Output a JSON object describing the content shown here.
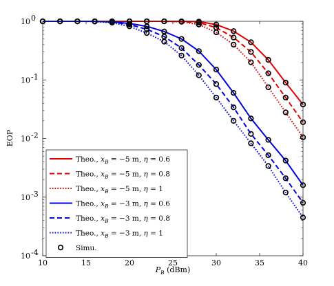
{
  "chart_data": {
    "type": "line",
    "title": "",
    "xlabel_main": "P",
    "xlabel_sub": "B",
    "xlabel_unit": " (dBm)",
    "ylabel": "EOP",
    "xlim": [
      10,
      40
    ],
    "ylim": [
      0.0001,
      1
    ],
    "yscale": "log",
    "grid": false,
    "legend_position": "bottom-left",
    "x_ticks": [
      "10",
      "15",
      "20",
      "25",
      "30",
      "35",
      "40"
    ],
    "y_ticks": [
      {
        "base": "10",
        "exp": "-4",
        "value": 0.0001
      },
      {
        "base": "10",
        "exp": "-3",
        "value": 0.001
      },
      {
        "base": "10",
        "exp": "-2",
        "value": 0.01
      },
      {
        "base": "10",
        "exp": "-1",
        "value": 0.1
      },
      {
        "base": "10",
        "exp": "0",
        "value": 1
      }
    ],
    "series": [
      {
        "name": "Theo., xB = −5 m, η = 0.6",
        "label_parts": [
          "Theo., ",
          "x",
          "B",
          " = −5 m, ",
          "η",
          " = 0.6"
        ],
        "color": "#e00000",
        "dash": "solid",
        "x": [
          10,
          12,
          14,
          16,
          18,
          20,
          22,
          24,
          26,
          28,
          30,
          32,
          34,
          36,
          38,
          40
        ],
        "y": [
          1,
          1,
          1,
          1,
          1,
          1,
          1,
          1,
          1,
          0.99,
          0.88,
          0.68,
          0.44,
          0.22,
          0.09,
          0.038
        ]
      },
      {
        "name": "Theo., xB = −5 m, η = 0.8",
        "label_parts": [
          "Theo., ",
          "x",
          "B",
          " = −5 m, ",
          "η",
          " = 0.8"
        ],
        "color": "#e00000",
        "dash": "dashed",
        "x": [
          10,
          12,
          14,
          16,
          18,
          20,
          22,
          24,
          26,
          28,
          30,
          32,
          34,
          36,
          38,
          40
        ],
        "y": [
          1,
          1,
          1,
          1,
          1,
          1,
          1,
          1,
          0.99,
          0.95,
          0.78,
          0.53,
          0.3,
          0.13,
          0.05,
          0.019
        ]
      },
      {
        "name": "Theo., xB = −5 m, η = 1",
        "label_parts": [
          "Theo., ",
          "x",
          "B",
          " = −5 m, ",
          "η",
          " = 1"
        ],
        "color": "#e00000",
        "dash": "dotted",
        "x": [
          10,
          12,
          14,
          16,
          18,
          20,
          22,
          24,
          26,
          28,
          30,
          32,
          34,
          36,
          38,
          40
        ],
        "y": [
          1,
          1,
          1,
          1,
          1,
          1,
          1,
          1,
          0.98,
          0.88,
          0.65,
          0.4,
          0.2,
          0.075,
          0.028,
          0.0105
        ]
      },
      {
        "name": "Theo., xB = −3 m, η = 0.6",
        "label_parts": [
          "Theo., ",
          "x",
          "B",
          " = −3 m, ",
          "η",
          " = 0.6"
        ],
        "color": "#0000e0",
        "dash": "solid",
        "x": [
          10,
          12,
          14,
          16,
          18,
          20,
          22,
          24,
          26,
          28,
          30,
          32,
          34,
          36,
          38,
          40
        ],
        "y": [
          1,
          1,
          1,
          1,
          0.98,
          0.92,
          0.82,
          0.67,
          0.5,
          0.31,
          0.15,
          0.06,
          0.022,
          0.0095,
          0.0042,
          0.0016
        ]
      },
      {
        "name": "Theo., xB = −3 m, η = 0.8",
        "label_parts": [
          "Theo., ",
          "x",
          "B",
          " = −3 m, ",
          "η",
          " = 0.8"
        ],
        "color": "#0000e0",
        "dash": "dashed",
        "x": [
          10,
          12,
          14,
          16,
          18,
          20,
          22,
          24,
          26,
          28,
          30,
          32,
          34,
          36,
          38,
          40
        ],
        "y": [
          1,
          1,
          1,
          1,
          0.97,
          0.88,
          0.73,
          0.55,
          0.35,
          0.18,
          0.085,
          0.034,
          0.012,
          0.0052,
          0.0021,
          0.0008
        ]
      },
      {
        "name": "Theo., xB = −3 m, η = 1",
        "label_parts": [
          "Theo., ",
          "x",
          "B",
          " = −3 m, ",
          "η",
          " = 1"
        ],
        "color": "#0000e0",
        "dash": "dotted",
        "x": [
          10,
          12,
          14,
          16,
          18,
          20,
          22,
          24,
          26,
          28,
          30,
          32,
          34,
          36,
          38,
          40
        ],
        "y": [
          1,
          1,
          1,
          0.99,
          0.95,
          0.82,
          0.63,
          0.45,
          0.26,
          0.12,
          0.05,
          0.02,
          0.0083,
          0.0034,
          0.0012,
          0.00045
        ]
      }
    ],
    "markers": {
      "name": "Simu.",
      "label_parts": [
        "Simu."
      ],
      "style": "circle",
      "color": "#000000"
    }
  }
}
